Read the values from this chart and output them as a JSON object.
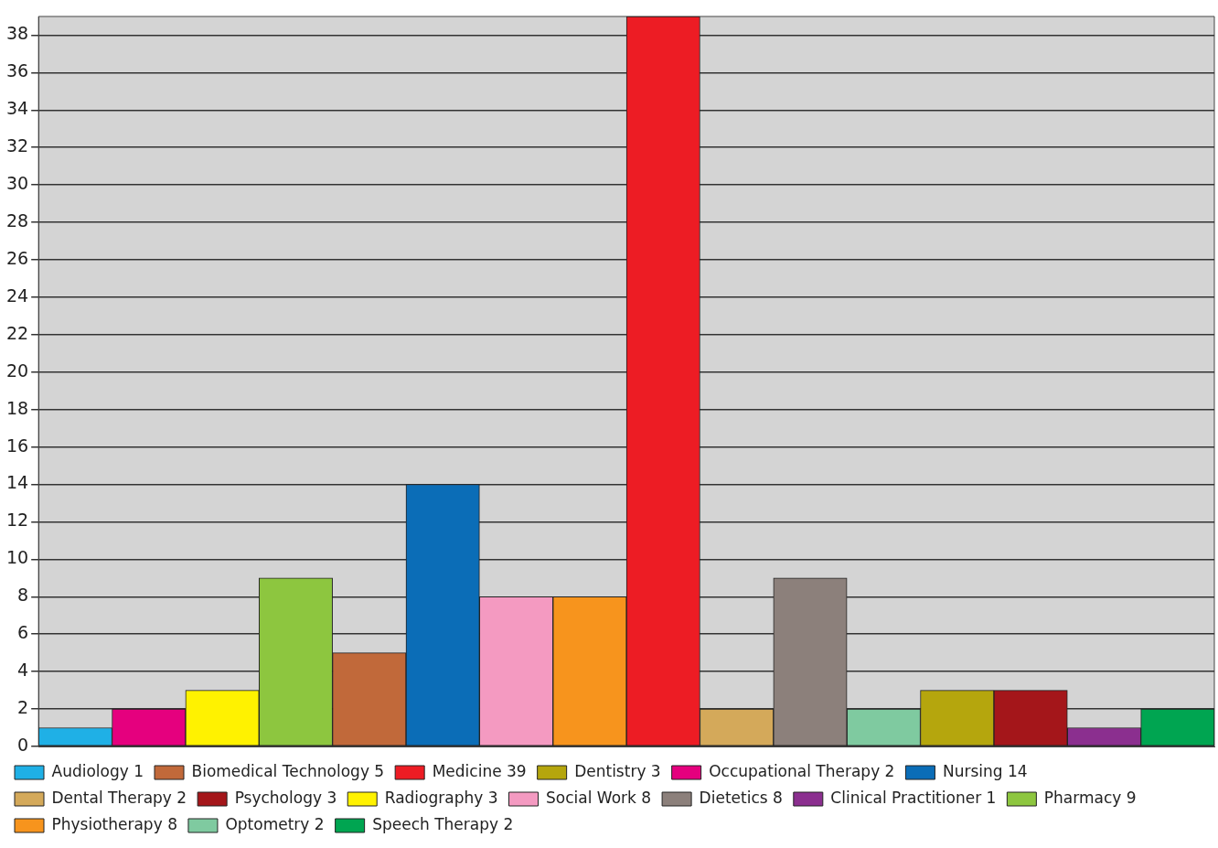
{
  "chart_data": {
    "type": "bar",
    "categories": [
      null,
      null,
      null,
      null,
      null,
      null,
      null,
      null,
      null,
      null,
      null,
      null,
      null,
      null,
      null,
      null
    ],
    "series": [
      {
        "name": "Audiology 1",
        "color": "#1fb0e6",
        "values": [
          1,
          null,
          null,
          null,
          null,
          null,
          null,
          null,
          null,
          null,
          null,
          null,
          null,
          null,
          null,
          null
        ]
      },
      {
        "name": "Occupational Therapy 2",
        "color": "#e5007e",
        "values": [
          null,
          2,
          null,
          null,
          null,
          null,
          null,
          null,
          null,
          null,
          null,
          null,
          null,
          null,
          null,
          null
        ]
      },
      {
        "name": "Radiography 3",
        "color": "#fff200",
        "values": [
          null,
          null,
          3,
          null,
          null,
          null,
          null,
          null,
          null,
          null,
          null,
          null,
          null,
          null,
          null,
          null
        ]
      },
      {
        "name": "Pharmacy 9",
        "color": "#8dc63f",
        "values": [
          null,
          null,
          null,
          9,
          null,
          null,
          null,
          null,
          null,
          null,
          null,
          null,
          null,
          null,
          null,
          null
        ]
      },
      {
        "name": "Biomedical Technology 5",
        "color": "#c1693a",
        "values": [
          null,
          null,
          null,
          null,
          5,
          null,
          null,
          null,
          null,
          null,
          null,
          null,
          null,
          null,
          null,
          null
        ]
      },
      {
        "name": "Nursing 14",
        "color": "#0b6db7",
        "values": [
          null,
          null,
          null,
          null,
          null,
          14,
          null,
          null,
          null,
          null,
          null,
          null,
          null,
          null,
          null,
          null
        ]
      },
      {
        "name": "Social Work 8",
        "color": "#f49ac1",
        "values": [
          null,
          null,
          null,
          null,
          null,
          null,
          8,
          null,
          null,
          null,
          null,
          null,
          null,
          null,
          null,
          null
        ]
      },
      {
        "name": "Physiotherapy 8",
        "color": "#f7941d",
        "values": [
          null,
          null,
          null,
          null,
          null,
          null,
          null,
          8,
          null,
          null,
          null,
          null,
          null,
          null,
          null,
          null
        ]
      },
      {
        "name": "Medicine 39",
        "color": "#ed1c24",
        "values": [
          null,
          null,
          null,
          null,
          null,
          null,
          null,
          null,
          39,
          null,
          null,
          null,
          null,
          null,
          null,
          null
        ]
      },
      {
        "name": "Dental Therapy 2",
        "color": "#d4a95a",
        "values": [
          null,
          null,
          null,
          null,
          null,
          null,
          null,
          null,
          null,
          2,
          null,
          null,
          null,
          null,
          null,
          null
        ]
      },
      {
        "name": "Dietetics 8",
        "color": "#8c807b",
        "values": [
          null,
          null,
          null,
          null,
          null,
          null,
          null,
          null,
          null,
          null,
          9,
          null,
          null,
          null,
          null,
          null
        ]
      },
      {
        "name": "Optometry 2",
        "color": "#7fcaa0",
        "values": [
          null,
          null,
          null,
          null,
          null,
          null,
          null,
          null,
          null,
          null,
          null,
          2,
          null,
          null,
          null,
          null
        ]
      },
      {
        "name": "Dentistry 3",
        "color": "#b5a60d",
        "values": [
          null,
          null,
          null,
          null,
          null,
          null,
          null,
          null,
          null,
          null,
          null,
          null,
          3,
          null,
          null,
          null
        ]
      },
      {
        "name": "Psychology 3",
        "color": "#a4161a",
        "values": [
          null,
          null,
          null,
          null,
          null,
          null,
          null,
          null,
          null,
          null,
          null,
          null,
          null,
          3,
          null,
          null
        ]
      },
      {
        "name": "Clinical Practitioner 1",
        "color": "#8b2f8f",
        "values": [
          null,
          null,
          null,
          null,
          null,
          null,
          null,
          null,
          null,
          null,
          null,
          null,
          null,
          null,
          1,
          null
        ]
      },
      {
        "name": "Speech Therapy 2",
        "color": "#00a551",
        "values": [
          null,
          null,
          null,
          null,
          null,
          null,
          null,
          null,
          null,
          null,
          null,
          null,
          null,
          null,
          null,
          2
        ]
      }
    ],
    "ylim": [
      0,
      39
    ],
    "yticks": [
      0,
      2,
      4,
      6,
      8,
      10,
      12,
      14,
      16,
      18,
      20,
      22,
      24,
      26,
      28,
      30,
      32,
      34,
      36,
      38
    ],
    "grid": "y",
    "legend": "bottom",
    "tick_labels": "y"
  }
}
